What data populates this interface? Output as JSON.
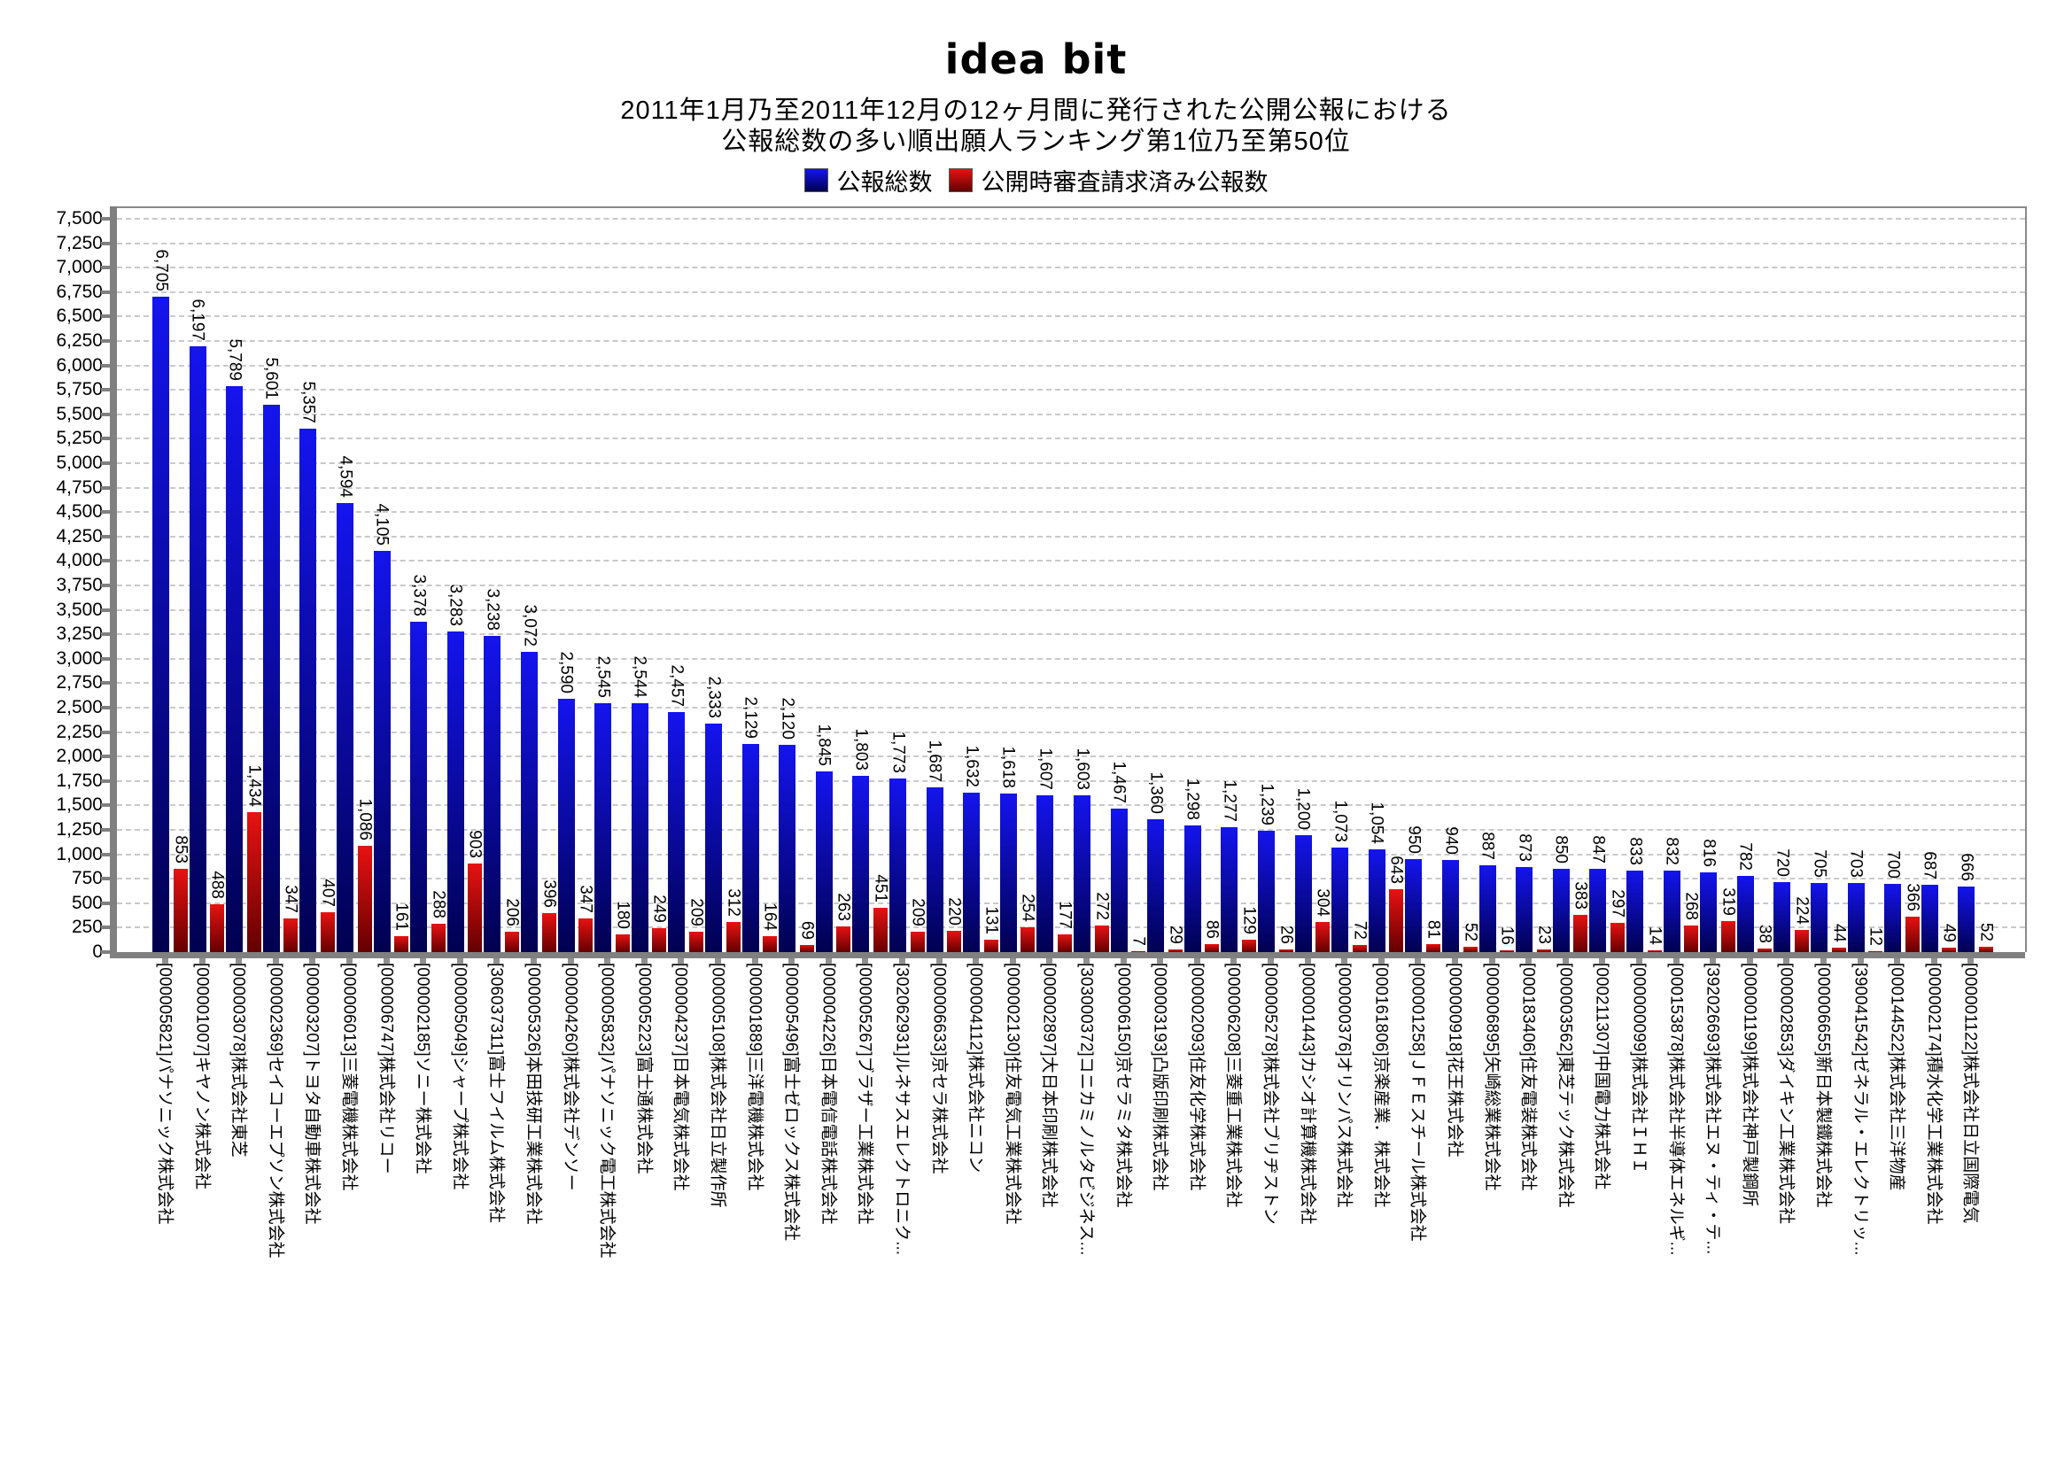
{
  "logo": "idea bit",
  "title_line1": "2011年1月乃至2011年12月の12ヶ月間に発行された公開公報における",
  "title_line2": "公報総数の多い順出願人ランキング第1位乃至第50位",
  "chart_data": {
    "type": "bar",
    "title": "2011年1月乃至2011年12月の12ヶ月間に発行された公開公報における公報総数の多い順出願人ランキング第1位乃至第50位",
    "ylim": [
      0,
      7500
    ],
    "ytick_step": 250,
    "grid": "horizontal-dashed",
    "legend_position": "top-center",
    "categories": [
      "[000005821]パナソニック株式会社",
      "[000001007]キヤノン株式会社",
      "[000003078]株式会社東芝",
      "[000002369]セイコーエプソン株式会社",
      "[000003207]トヨタ自動車株式会社",
      "[000006013]三菱電機株式会社",
      "[000006747]株式会社リコー",
      "[000002185]ソニー株式会社",
      "[000005049]シャープ株式会社",
      "[306037311]富士フイルム株式会社",
      "[000005326]本田技研工業株式会社",
      "[000004260]株式会社デンソー",
      "[000005832]パナソニック電工株式会社",
      "[000005223]富士通株式会社",
      "[000004237]日本電気株式会社",
      "[000005108]株式会社日立製作所",
      "[000001889]三洋電機株式会社",
      "[000005496]富士ゼロックス株式会社",
      "[000004226]日本電信電話株式会社",
      "[000005267]ブラザー工業株式会社",
      "[302062931]ルネサスエレクトロニク...",
      "[000006633]京セラ株式会社",
      "[000004112]株式会社ニコン",
      "[000002130]住友電気工業株式会社",
      "[000002897]大日本印刷株式会社",
      "[303000372]コニカミノルタビジネス...",
      "[000006150]京セラミタ株式会社",
      "[000003193]凸版印刷株式会社",
      "[000002093]住友化学株式会社",
      "[000006208]三菱重工業株式会社",
      "[000005278]株式会社ブリヂストン",
      "[000001443]カシオ計算機株式会社",
      "[000000376]オリンパス株式会社",
      "[000161806]京楽産業．株式会社",
      "[000001258]ＪＦＥスチール株式会社",
      "[000000918]花王株式会社",
      "[000006895]矢崎総業株式会社",
      "[000183406]住友電装株式会社",
      "[000003562]東芝テック株式会社",
      "[000211307]中国電力株式会社",
      "[000000099]株式会社ＩＨＩ",
      "[000153878]株式会社半導体エネルギ...",
      "[392026693]株式会社エヌ・ティ・テ...",
      "[000001199]株式会社神戸製鋼所",
      "[000002853]ダイキン工業株式会社",
      "[000006655]新日本製鐵株式会社",
      "[390041542]ゼネラル・エレクトリッ...",
      "[000144522]株式会社三洋物産",
      "[000002174]積水化学工業株式会社",
      "[000001122]株式会社日立国際電気"
    ],
    "series": [
      {
        "name": "公報総数",
        "color_top": "#1414ee",
        "color_bottom": "#000050",
        "values": [
          6705,
          6197,
          5789,
          5601,
          5357,
          4594,
          4105,
          3378,
          3283,
          3238,
          3072,
          2590,
          2545,
          2544,
          2457,
          2333,
          2129,
          2120,
          1845,
          1803,
          1773,
          1687,
          1632,
          1618,
          1607,
          1603,
          1467,
          1360,
          1298,
          1277,
          1239,
          1200,
          1073,
          1054,
          950,
          940,
          887,
          873,
          850,
          847,
          833,
          832,
          816,
          782,
          720,
          705,
          703,
          700,
          687,
          666
        ]
      },
      {
        "name": "公開時審査請求済み公報数",
        "color_top": "#e81212",
        "color_bottom": "#640000",
        "values": [
          853,
          488,
          1434,
          347,
          407,
          1086,
          161,
          288,
          903,
          206,
          396,
          347,
          180,
          249,
          209,
          312,
          164,
          69,
          263,
          451,
          209,
          220,
          131,
          254,
          177,
          272,
          7,
          29,
          86,
          129,
          26,
          304,
          72,
          643,
          81,
          52,
          16,
          23,
          383,
          297,
          14,
          268,
          319,
          38,
          224,
          44,
          12,
          366,
          49,
          52
        ]
      }
    ]
  }
}
